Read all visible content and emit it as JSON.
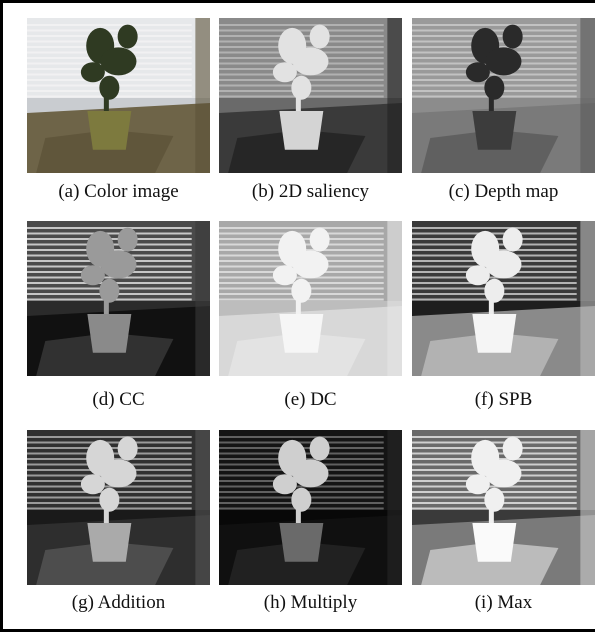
{
  "figure": {
    "panels": [
      {
        "caption": "(a) Color image"
      },
      {
        "caption": "(b) 2D saliency"
      },
      {
        "caption": "(c) Depth map"
      },
      {
        "caption": "(d) CC"
      },
      {
        "caption": "(e) DC"
      },
      {
        "caption": "(f) SPB"
      },
      {
        "caption": "(g) Addition"
      },
      {
        "caption": "(h) Multiply"
      },
      {
        "caption": "(i) Max"
      }
    ]
  }
}
